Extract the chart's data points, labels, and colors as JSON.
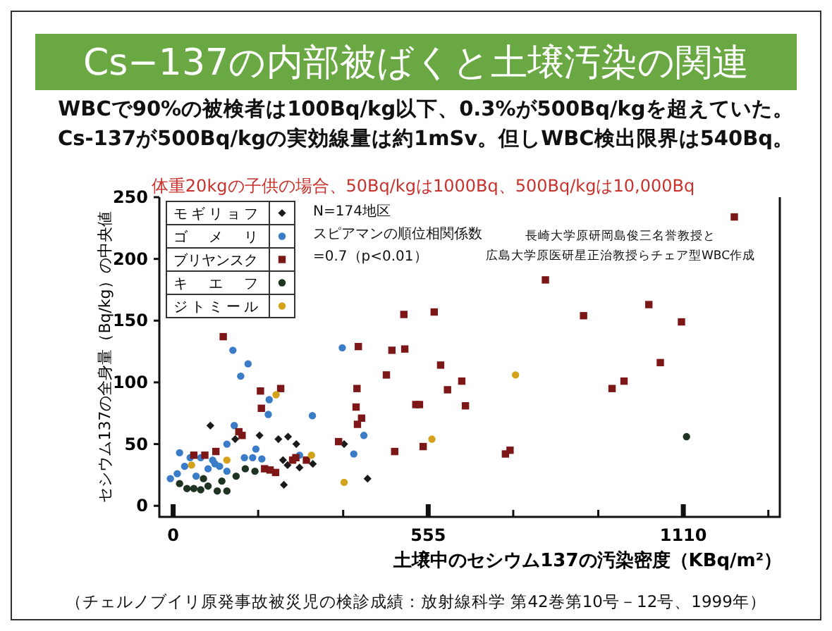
{
  "chart_data": {
    "type": "scatter",
    "title": "Cs−137の内部被ばくと土壌汚染の関連",
    "subtitle": "WBCで90%の被検者は100Bq/kg以下、0.3%が500Bq/kgを超えていた。\nCs-137が500Bq/kgの実効線量は約1mSv。但しWBC検出限界は540Bq。",
    "xlabel": "土壌中のセシウム137の汚染密度（KBq/m²）",
    "ylabel": "セシウム137の全身量（Bq/kg）の中央値",
    "xlim": [
      -30,
      1320
    ],
    "ylim": [
      -9,
      250
    ],
    "xticks": [
      0,
      {
        "value": 185,
        "label": null
      },
      {
        "value": 370,
        "label": null
      },
      555,
      {
        "value": 740,
        "label": null
      },
      {
        "value": 925,
        "label": null
      },
      1110,
      {
        "value": 1295,
        "label": null
      }
    ],
    "yticks": [
      0,
      50,
      100,
      150,
      200,
      250
    ],
    "grid": false,
    "legend": "top left",
    "annotations": [
      "体重20kgの子供の場合、50Bq/kgは1000Bq、500Bq/kgは10,000Bq",
      "N=174地区",
      "スピアマンの順位相関係数",
      "=0.7（p<0.01）",
      "長崎大学原研岡島俊三名誉教授と",
      "広島大学原医研星正治教授らチェア型WBC作成",
      "（チェルノブイリ原発事故被災児の検診成績：放射線科学 第42巻第10号－12号、1999年）"
    ],
    "series": [
      {
        "name": "モギリョフ",
        "color": "#1a1a1a",
        "marker": "diamond",
        "x": [
          81,
          135,
          188,
          229,
          250,
          268,
          304,
          241,
          423,
          372,
          239,
          249,
          275
        ],
        "values": [
          65,
          54,
          57,
          54,
          56,
          50,
          34,
          17,
          22,
          50,
          37,
          33,
          31
        ]
      },
      {
        "name": "ゴメリ",
        "color": "#3a7cc8",
        "marker": "circle",
        "x": [
          130,
          163,
          147,
          209,
          207,
          133,
          117,
          368,
          303,
          415,
          393,
          180,
          155,
          173,
          193,
          275,
          14,
          37,
          60,
          86,
          9,
          25,
          76,
          101,
          117,
          -6,
          50,
          91
        ],
        "values": [
          126,
          115,
          105,
          86,
          74,
          65,
          50,
          128,
          73,
          57,
          42,
          46,
          39,
          39,
          38,
          41,
          43,
          39,
          39,
          37,
          26,
          32,
          30,
          32,
          28,
          22,
          24,
          34
        ]
      },
      {
        "name": "ブリヤンスク",
        "color": "#7d1616",
        "marker": "square",
        "x": [
          109,
          234,
          190,
          192,
          143,
          150,
          290,
          260,
          267,
          199,
          223,
          211,
          45,
          69,
          93,
          400,
          398,
          410,
          401,
          403,
          360,
          504,
          476,
          464,
          528,
          536,
          482,
          544,
          582,
          597,
          628,
          636,
          568,
          502,
          723,
          733,
          810,
          893,
          1035,
          1106,
          1060,
          955,
          981,
          1221
        ],
        "values": [
          137,
          95,
          93,
          79,
          60,
          57,
          37,
          37,
          39,
          30,
          27,
          29,
          41,
          41,
          44,
          95,
          80,
          71,
          66,
          129,
          52,
          127,
          126,
          106,
          82,
          82,
          44,
          48,
          114,
          94,
          101,
          81,
          157,
          155,
          42,
          45,
          183,
          154,
          163,
          149,
          116,
          95,
          101,
          234
        ]
      },
      {
        "name": "キエフ",
        "color": "#1f3322",
        "marker": "circle",
        "x": [
          14,
          30,
          45,
          60,
          76,
          96,
          117,
          66,
          106,
          137,
          157,
          178,
          1117
        ],
        "values": [
          18,
          14,
          14,
          13,
          16,
          12,
          12,
          22,
          20,
          24,
          30,
          28,
          56
        ]
      },
      {
        "name": "ジトミール",
        "color": "#d4a21a",
        "marker": "circle",
        "x": [
          224,
          301,
          372,
          563,
          745,
          40,
          117
        ],
        "values": [
          90,
          41,
          19,
          54,
          106,
          33,
          37
        ]
      }
    ]
  }
}
